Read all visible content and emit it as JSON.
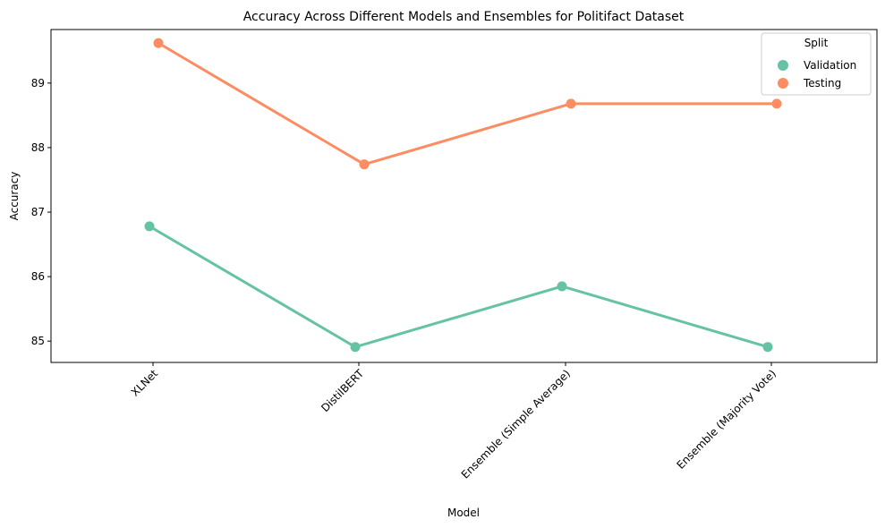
{
  "chart_data": {
    "type": "line",
    "title": "Accuracy Across Different Models and Ensembles for Politifact Dataset",
    "xlabel": "Model",
    "ylabel": "Accuracy",
    "categories": [
      "XLNet",
      "DistilBERT",
      "Ensemble (Simple Average)",
      "Ensemble (Majority Vote)"
    ],
    "ylim": [
      84.67,
      89.83
    ],
    "yticks": [
      85,
      86,
      87,
      88,
      89
    ],
    "grid": false,
    "legend": {
      "title": "Split",
      "placement": "top-right"
    },
    "series": [
      {
        "name": "Validation",
        "color": "#66c2a5",
        "values": [
          86.78,
          84.91,
          85.85,
          84.91
        ]
      },
      {
        "name": "Testing",
        "color": "#fc8d62",
        "values": [
          89.62,
          87.74,
          88.68,
          88.68
        ]
      }
    ]
  }
}
